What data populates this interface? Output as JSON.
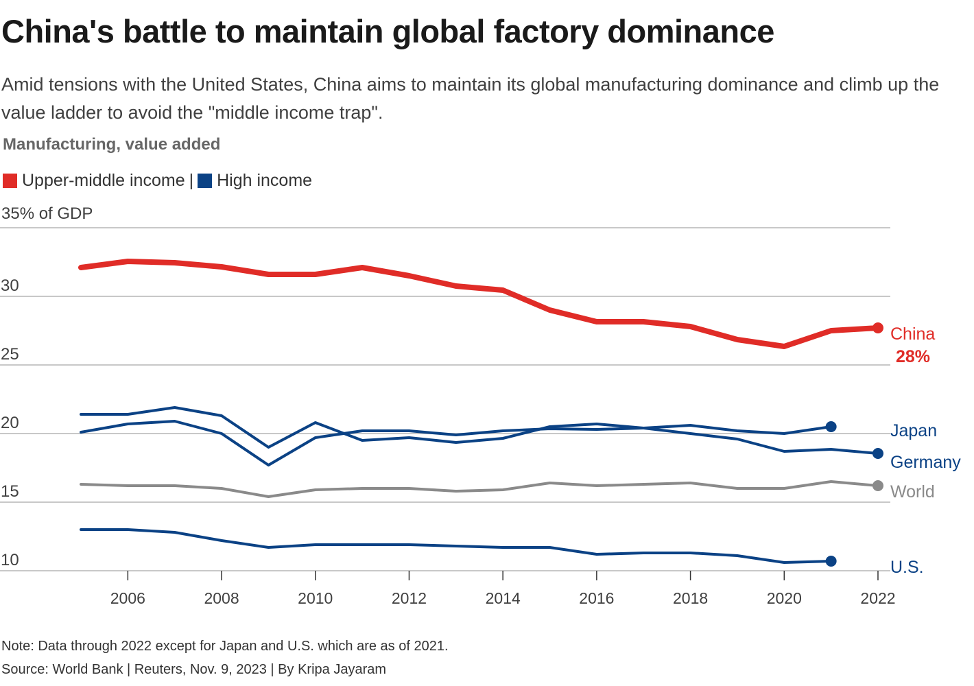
{
  "header": {
    "title": "China's battle to maintain global factory dominance",
    "subtitle": "Amid tensions with the United States, China aims to maintain its global manufacturing dominance and climb up the value ladder to avoid the \"middle income trap\".",
    "section_label": "Manufacturing, value added"
  },
  "legend": {
    "items": [
      {
        "label": "Upper-middle income",
        "color": "#e02c27"
      },
      {
        "label": "High income",
        "color": "#0b4285"
      }
    ],
    "separator": "|"
  },
  "footer": {
    "note": "Note: Data through 2022 except for Japan and U.S. which are as of 2021.",
    "source": "Source: World Bank | Reuters, Nov. 9, 2023 | By Kripa Jayaram"
  },
  "chart_data": {
    "type": "line",
    "title": "China's battle to maintain global factory dominance",
    "ylabel": "% of GDP",
    "ylim": [
      10,
      35
    ],
    "yticks": [
      10,
      15,
      20,
      25,
      30,
      35
    ],
    "ytick_labels": [
      "10",
      "15",
      "20",
      "25",
      "30",
      "35% of GDP"
    ],
    "xlim": [
      2005,
      2022
    ],
    "xticks": [
      2006,
      2008,
      2010,
      2012,
      2014,
      2016,
      2018,
      2020,
      2022
    ],
    "xtick_labels": [
      "2006",
      "2008",
      "2010",
      "2012",
      "2014",
      "2016",
      "2018",
      "2020",
      "2022"
    ],
    "grid": "horizontal",
    "x": [
      2005,
      2006,
      2007,
      2008,
      2009,
      2010,
      2011,
      2012,
      2013,
      2014,
      2015,
      2016,
      2017,
      2018,
      2019,
      2020,
      2021,
      2022
    ],
    "series": [
      {
        "name": "China",
        "group": "Upper-middle income",
        "color": "#e02c27",
        "end_label": "China",
        "end_value_label": "28%",
        "values": [
          32.1,
          32.55,
          32.45,
          32.15,
          31.6,
          31.6,
          32.1,
          31.5,
          30.75,
          30.45,
          29.0,
          28.15,
          28.15,
          27.8,
          26.85,
          26.35,
          27.5,
          27.7
        ]
      },
      {
        "name": "Germany",
        "group": "High income",
        "color": "#0b4285",
        "end_label": "Germany",
        "values": [
          21.4,
          21.4,
          21.9,
          21.3,
          19.0,
          20.8,
          19.5,
          19.7,
          19.35,
          19.65,
          20.5,
          20.7,
          20.4,
          20.0,
          19.6,
          18.7,
          18.85,
          18.55
        ]
      },
      {
        "name": "Japan",
        "group": "High income",
        "color": "#0b4285",
        "end_label": "Japan",
        "values": [
          20.1,
          20.7,
          20.9,
          20.0,
          17.7,
          19.7,
          20.2,
          20.2,
          19.9,
          20.2,
          20.35,
          20.3,
          20.4,
          20.6,
          20.2,
          20.0,
          20.5,
          null
        ]
      },
      {
        "name": "World",
        "group": "World",
        "color": "#8a8a8a",
        "end_label": "World",
        "values": [
          16.3,
          16.2,
          16.2,
          16.0,
          15.4,
          15.9,
          16.0,
          16.0,
          15.8,
          15.9,
          16.4,
          16.2,
          16.3,
          16.4,
          16.0,
          16.0,
          16.5,
          16.2
        ]
      },
      {
        "name": "U.S.",
        "group": "High income",
        "color": "#0b4285",
        "end_label": "U.S.",
        "values": [
          13.0,
          13.0,
          12.8,
          12.2,
          11.7,
          11.9,
          11.9,
          11.9,
          11.8,
          11.7,
          11.7,
          11.2,
          11.3,
          11.3,
          11.1,
          10.6,
          10.7,
          null
        ]
      }
    ]
  }
}
